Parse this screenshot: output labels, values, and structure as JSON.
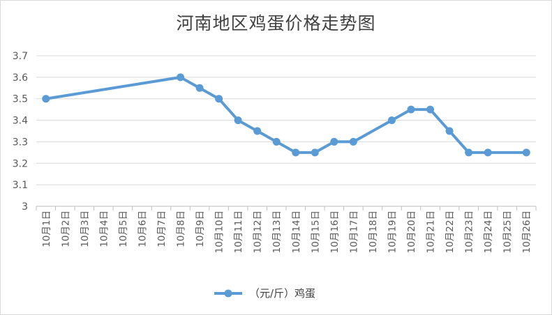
{
  "chart_data": {
    "type": "line",
    "title": "河南地区鸡蛋价格走势图",
    "categories": [
      "10月1日",
      "10月2日",
      "10月3日",
      "10月4日",
      "10月5日",
      "10月6日",
      "10月7日",
      "10月8日",
      "10月9日",
      "10月10日",
      "10月11日",
      "10月12日",
      "10月13日",
      "10月14日",
      "10月15日",
      "10月16日",
      "10月17日",
      "10月18日",
      "10月19日",
      "10月20日",
      "10月21日",
      "10月22日",
      "10月23日",
      "10月24日",
      "10月25日",
      "10月26日"
    ],
    "series": [
      {
        "name": "（元/斤）鸡蛋",
        "values": [
          3.5,
          null,
          null,
          null,
          null,
          null,
          null,
          3.6,
          3.55,
          3.5,
          3.4,
          3.35,
          3.3,
          3.25,
          3.25,
          3.3,
          3.3,
          null,
          3.4,
          3.45,
          3.45,
          3.35,
          3.25,
          3.25,
          null,
          3.25
        ],
        "color": "#5b9bd5"
      }
    ],
    "ylim": [
      3,
      3.7
    ],
    "yticks": [
      "3",
      "3.1",
      "3.2",
      "3.3",
      "3.4",
      "3.5",
      "3.6",
      "3.7"
    ],
    "grid": true,
    "legend_position": "bottom"
  }
}
